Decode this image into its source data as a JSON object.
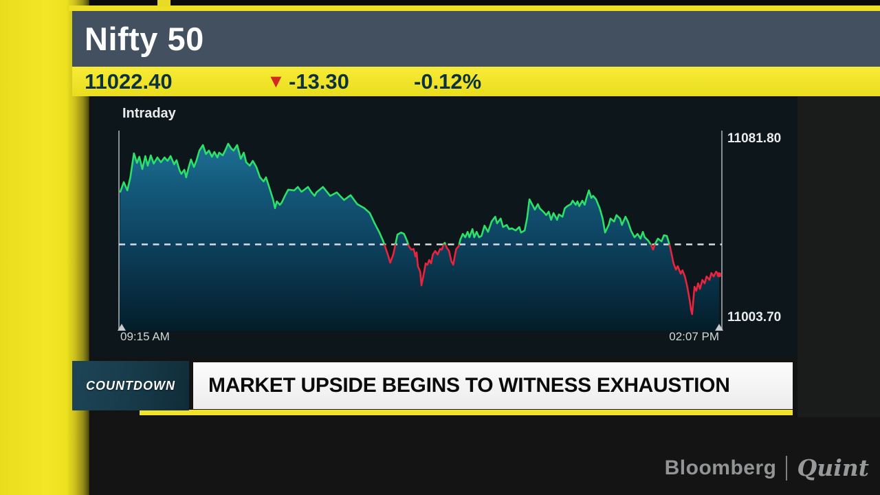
{
  "header": {
    "title": "Nifty 50"
  },
  "ticker": {
    "last_price": "11022.40",
    "arrow": "▼",
    "change": "-13.30",
    "change_percent": "-0.12%"
  },
  "chart": {
    "mode_label": "Intraday",
    "y_max_label": "11081.80",
    "y_min_label": "11003.70",
    "x_start_label": "09:15 AM",
    "x_end_label": "02:07 PM"
  },
  "lower_third": {
    "badge_label": "COUNTDOWN",
    "headline": "MARKET UPSIDE BEGINS TO WITNESS EXHAUSTION"
  },
  "branding": {
    "bloomberg": "Bloomberg",
    "quint": "Quint"
  },
  "colors": {
    "accent_yellow": "#f0e423",
    "header_slate": "#42505f",
    "ticker_text": "#0c323c",
    "negative_red": "#d2291f",
    "line_green": "#2ce068",
    "line_red": "#e8243f",
    "prev_close_dash": "#d8dde0",
    "axis_gray": "#8a9194",
    "badge_teal": "#173a49",
    "area_top": "#1e7398",
    "area_bottom": "#041d2a"
  },
  "chart_data": {
    "type": "area",
    "title": "Intraday",
    "symbol": "Nifty 50",
    "last_price": 11022.4,
    "change": -13.3,
    "change_pct": -0.12,
    "prev_close": 11035.7,
    "ylim": [
      11003.7,
      11081.8
    ],
    "y_axis_labels": [
      "11081.80",
      "11003.70"
    ],
    "x_range": [
      "09:15 AM",
      "02:07 PM"
    ],
    "grid": false,
    "legend": false,
    "note": "points are [fraction_of_session, price]; line is green above prev_close, red below",
    "points": [
      [
        0.002,
        11058.4
      ],
      [
        0.008,
        11062.9
      ],
      [
        0.014,
        11059.3
      ],
      [
        0.019,
        11065.0
      ],
      [
        0.025,
        11075.5
      ],
      [
        0.03,
        11071.3
      ],
      [
        0.034,
        11074.0
      ],
      [
        0.039,
        11068.6
      ],
      [
        0.044,
        11074.3
      ],
      [
        0.048,
        11070.1
      ],
      [
        0.053,
        11074.6
      ],
      [
        0.058,
        11071.0
      ],
      [
        0.064,
        11073.7
      ],
      [
        0.07,
        11071.6
      ],
      [
        0.076,
        11073.7
      ],
      [
        0.081,
        11072.2
      ],
      [
        0.086,
        11074.3
      ],
      [
        0.092,
        11070.7
      ],
      [
        0.096,
        11072.5
      ],
      [
        0.101,
        11068.0
      ],
      [
        0.104,
        11066.5
      ],
      [
        0.109,
        11068.3
      ],
      [
        0.112,
        11065.0
      ],
      [
        0.116,
        11069.2
      ],
      [
        0.12,
        11072.8
      ],
      [
        0.125,
        11069.5
      ],
      [
        0.129,
        11072.2
      ],
      [
        0.134,
        11076.7
      ],
      [
        0.14,
        11079.1
      ],
      [
        0.145,
        11075.2
      ],
      [
        0.15,
        11076.7
      ],
      [
        0.155,
        11074.0
      ],
      [
        0.159,
        11076.1
      ],
      [
        0.164,
        11073.7
      ],
      [
        0.167,
        11075.8
      ],
      [
        0.173,
        11074.6
      ],
      [
        0.178,
        11077.3
      ],
      [
        0.182,
        11079.7
      ],
      [
        0.187,
        11077.6
      ],
      [
        0.191,
        11076.7
      ],
      [
        0.197,
        11079.1
      ],
      [
        0.203,
        11073.1
      ],
      [
        0.208,
        11075.8
      ],
      [
        0.212,
        11071.6
      ],
      [
        0.218,
        11070.1
      ],
      [
        0.223,
        11072.2
      ],
      [
        0.229,
        11069.5
      ],
      [
        0.235,
        11065.0
      ],
      [
        0.241,
        11063.2
      ],
      [
        0.245,
        11065.0
      ],
      [
        0.251,
        11060.2
      ],
      [
        0.257,
        11055.1
      ],
      [
        0.26,
        11051.5
      ],
      [
        0.263,
        11054.5
      ],
      [
        0.268,
        11053.0
      ],
      [
        0.271,
        11053.9
      ],
      [
        0.276,
        11056.6
      ],
      [
        0.282,
        11059.6
      ],
      [
        0.292,
        11059.3
      ],
      [
        0.298,
        11060.8
      ],
      [
        0.304,
        11058.7
      ],
      [
        0.309,
        11059.6
      ],
      [
        0.315,
        11060.8
      ],
      [
        0.321,
        11058.4
      ],
      [
        0.326,
        11056.9
      ],
      [
        0.329,
        11058.4
      ],
      [
        0.34,
        11060.8
      ],
      [
        0.352,
        11056.9
      ],
      [
        0.363,
        11058.4
      ],
      [
        0.375,
        11055.1
      ],
      [
        0.386,
        11057.2
      ],
      [
        0.397,
        11053.3
      ],
      [
        0.409,
        11051.5
      ],
      [
        0.418,
        11049.4
      ],
      [
        0.426,
        11044.9
      ],
      [
        0.434,
        11040.9
      ],
      [
        0.44,
        11037.3
      ],
      [
        0.443,
        11035.2
      ],
      [
        0.449,
        11030.4
      ],
      [
        0.452,
        11027.7
      ],
      [
        0.457,
        11031.3
      ],
      [
        0.46,
        11034.9
      ],
      [
        0.464,
        11040.0
      ],
      [
        0.47,
        11040.9
      ],
      [
        0.475,
        11040.3
      ],
      [
        0.48,
        11037.3
      ],
      [
        0.483,
        11034.9
      ],
      [
        0.487,
        11033.4
      ],
      [
        0.491,
        11033.7
      ],
      [
        0.494,
        11030.4
      ],
      [
        0.496,
        11032.2
      ],
      [
        0.498,
        11026.2
      ],
      [
        0.502,
        11023.8
      ],
      [
        0.504,
        11017.8
      ],
      [
        0.509,
        11024.4
      ],
      [
        0.511,
        11027.4
      ],
      [
        0.514,
        11026.8
      ],
      [
        0.517,
        11028.9
      ],
      [
        0.52,
        11027.4
      ],
      [
        0.523,
        11031.3
      ],
      [
        0.527,
        11032.8
      ],
      [
        0.531,
        11031.3
      ],
      [
        0.535,
        11033.7
      ],
      [
        0.538,
        11033.4
      ],
      [
        0.541,
        11035.8
      ],
      [
        0.543,
        11036.4
      ],
      [
        0.546,
        11034.3
      ],
      [
        0.55,
        11032.8
      ],
      [
        0.554,
        11028.3
      ],
      [
        0.557,
        11026.8
      ],
      [
        0.56,
        11031.3
      ],
      [
        0.562,
        11033.7
      ],
      [
        0.566,
        11034.9
      ],
      [
        0.569,
        11037.9
      ],
      [
        0.573,
        11040.3
      ],
      [
        0.577,
        11038.8
      ],
      [
        0.581,
        11041.2
      ],
      [
        0.584,
        11038.8
      ],
      [
        0.589,
        11042.4
      ],
      [
        0.592,
        11038.8
      ],
      [
        0.596,
        11041.2
      ],
      [
        0.6,
        11038.8
      ],
      [
        0.604,
        11039.4
      ],
      [
        0.609,
        11043.9
      ],
      [
        0.615,
        11041.2
      ],
      [
        0.621,
        11045.7
      ],
      [
        0.627,
        11047.8
      ],
      [
        0.63,
        11044.9
      ],
      [
        0.636,
        11047.0
      ],
      [
        0.64,
        11043.3
      ],
      [
        0.646,
        11044.2
      ],
      [
        0.65,
        11042.4
      ],
      [
        0.655,
        11042.7
      ],
      [
        0.661,
        11041.8
      ],
      [
        0.667,
        11043.3
      ],
      [
        0.67,
        11040.9
      ],
      [
        0.676,
        11041.8
      ],
      [
        0.68,
        11047.0
      ],
      [
        0.684,
        11055.4
      ],
      [
        0.69,
        11052.4
      ],
      [
        0.693,
        11050.9
      ],
      [
        0.698,
        11053.3
      ],
      [
        0.701,
        11051.5
      ],
      [
        0.707,
        11050.0
      ],
      [
        0.712,
        11048.5
      ],
      [
        0.716,
        11050.0
      ],
      [
        0.72,
        11046.4
      ],
      [
        0.724,
        11049.4
      ],
      [
        0.73,
        11046.4
      ],
      [
        0.733,
        11048.8
      ],
      [
        0.739,
        11047.8
      ],
      [
        0.743,
        11051.5
      ],
      [
        0.747,
        11052.4
      ],
      [
        0.753,
        11053.3
      ],
      [
        0.756,
        11054.8
      ],
      [
        0.761,
        11053.0
      ],
      [
        0.764,
        11054.5
      ],
      [
        0.767,
        11052.4
      ],
      [
        0.772,
        11054.8
      ],
      [
        0.776,
        11053.0
      ],
      [
        0.779,
        11056.0
      ],
      [
        0.783,
        11059.3
      ],
      [
        0.787,
        11056.0
      ],
      [
        0.79,
        11056.9
      ],
      [
        0.795,
        11055.4
      ],
      [
        0.801,
        11051.5
      ],
      [
        0.806,
        11047.0
      ],
      [
        0.81,
        11040.9
      ],
      [
        0.816,
        11044.2
      ],
      [
        0.819,
        11047.0
      ],
      [
        0.825,
        11045.7
      ],
      [
        0.829,
        11048.5
      ],
      [
        0.835,
        11047.0
      ],
      [
        0.838,
        11044.2
      ],
      [
        0.844,
        11047.8
      ],
      [
        0.848,
        11045.7
      ],
      [
        0.853,
        11041.8
      ],
      [
        0.859,
        11038.8
      ],
      [
        0.864,
        11040.3
      ],
      [
        0.869,
        11038.2
      ],
      [
        0.873,
        11041.2
      ],
      [
        0.876,
        11038.8
      ],
      [
        0.882,
        11037.3
      ],
      [
        0.887,
        11035.2
      ],
      [
        0.89,
        11033.4
      ],
      [
        0.893,
        11035.8
      ],
      [
        0.898,
        11038.2
      ],
      [
        0.904,
        11037.0
      ],
      [
        0.908,
        11039.7
      ],
      [
        0.913,
        11039.4
      ],
      [
        0.918,
        11034.9
      ],
      [
        0.921,
        11031.3
      ],
      [
        0.924,
        11027.4
      ],
      [
        0.928,
        11024.7
      ],
      [
        0.931,
        11026.2
      ],
      [
        0.936,
        11022.9
      ],
      [
        0.939,
        11024.4
      ],
      [
        0.943,
        11021.7
      ],
      [
        0.947,
        11017.2
      ],
      [
        0.951,
        11011.2
      ],
      [
        0.953,
        11007.3
      ],
      [
        0.955,
        11005.2
      ],
      [
        0.959,
        11017.2
      ],
      [
        0.962,
        11015.4
      ],
      [
        0.965,
        11018.7
      ],
      [
        0.968,
        11016.3
      ],
      [
        0.972,
        11020.2
      ],
      [
        0.976,
        11018.7
      ],
      [
        0.979,
        11021.7
      ],
      [
        0.984,
        11020.2
      ],
      [
        0.987,
        11023.2
      ],
      [
        0.991,
        11021.7
      ],
      [
        0.995,
        11023.8
      ],
      [
        1.0,
        11022.4
      ]
    ]
  }
}
